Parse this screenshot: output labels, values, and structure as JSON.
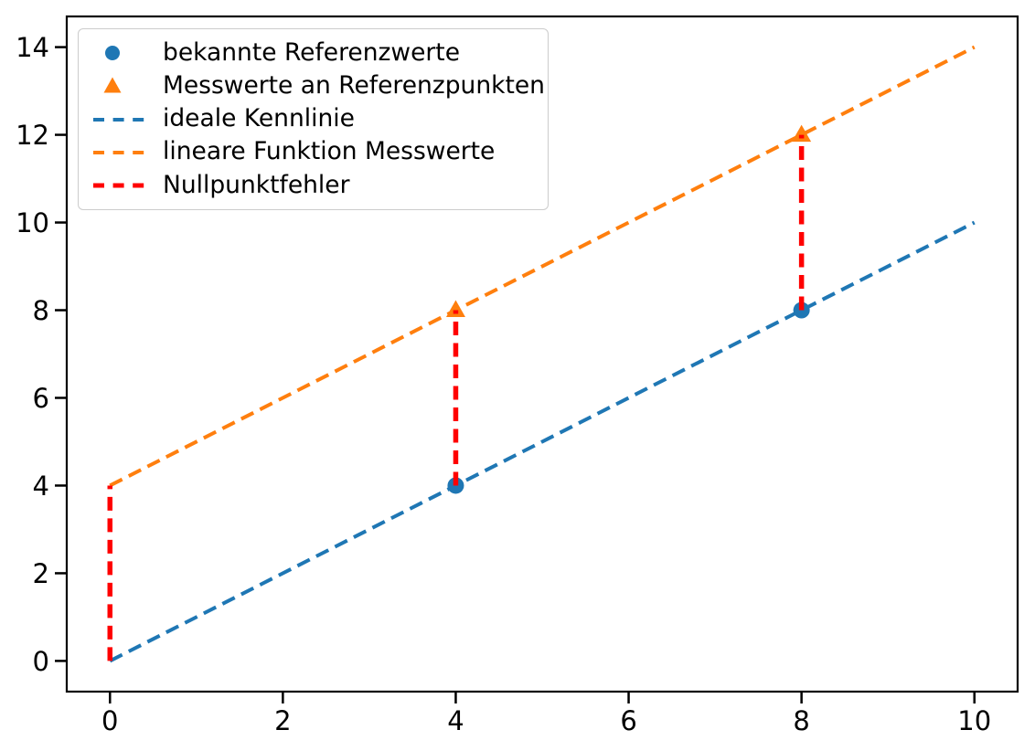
{
  "figure": {
    "background_color": "#ffffff",
    "spine_color": "#000000",
    "tick_color": "#000000",
    "legend_border_color": "#cccccc"
  },
  "chart_data": {
    "type": "line",
    "title": "",
    "xlabel": "",
    "ylabel": "",
    "xlim": [
      -0.5,
      10.5
    ],
    "ylim": [
      -0.7,
      14.7
    ],
    "x_ticks": [
      0,
      2,
      4,
      6,
      8,
      10
    ],
    "y_ticks": [
      0,
      2,
      4,
      6,
      8,
      10,
      12,
      14
    ],
    "grid": false,
    "legend_position": "upper-left",
    "series": [
      {
        "name": "bekannte Referenzwerte",
        "kind": "scatter",
        "marker": "circle",
        "color": "#1f77b4",
        "points": [
          [
            4,
            4
          ],
          [
            8,
            8
          ]
        ]
      },
      {
        "name": "Messwerte an Referenzpunkten",
        "kind": "scatter",
        "marker": "triangle-up",
        "color": "#ff7f0e",
        "points": [
          [
            4,
            8
          ],
          [
            8,
            12
          ]
        ]
      },
      {
        "name": "ideale Kennlinie",
        "kind": "line",
        "linestyle": "dashed",
        "color": "#1f77b4",
        "points": [
          [
            0,
            0
          ],
          [
            10,
            10
          ]
        ]
      },
      {
        "name": "lineare Funktion Messwerte",
        "kind": "line",
        "linestyle": "dashed",
        "color": "#ff7f0e",
        "points": [
          [
            0,
            4
          ],
          [
            10,
            14
          ]
        ]
      },
      {
        "name": "Nullpunktfehler",
        "kind": "segments",
        "linestyle": "dashed",
        "color": "#ff0000",
        "segments": [
          [
            [
              0,
              0
            ],
            [
              0,
              4
            ]
          ],
          [
            [
              4,
              4
            ],
            [
              4,
              8
            ]
          ],
          [
            [
              8,
              8
            ],
            [
              8,
              12
            ]
          ]
        ]
      }
    ]
  }
}
